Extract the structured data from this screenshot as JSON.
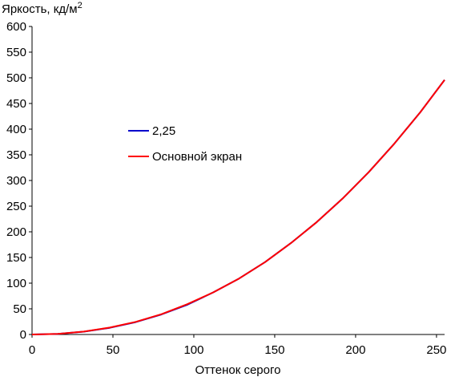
{
  "chart_data": {
    "type": "line",
    "title": "",
    "ylabel": "Яркость, кд/м",
    "ylabel_sup": "2",
    "xlabel": "Оттенок серого",
    "xlim": [
      0,
      255
    ],
    "ylim": [
      0,
      600
    ],
    "x_ticks": [
      "0",
      "50",
      "100",
      "150",
      "200",
      "250"
    ],
    "y_ticks": [
      "0",
      "50",
      "100",
      "150",
      "200",
      "250",
      "300",
      "350",
      "400",
      "450",
      "500",
      "550",
      "600"
    ],
    "grid": false,
    "legend_position": "center-left",
    "series": [
      {
        "name": "2,25",
        "color": "#0000cc",
        "x": [
          0,
          16,
          32,
          48,
          64,
          80,
          96,
          112,
          128,
          144,
          160,
          176,
          192,
          208,
          224,
          240,
          255
        ],
        "y": [
          0,
          1.2,
          5.4,
          13,
          24,
          39,
          58,
          82,
          109,
          141,
          178,
          219,
          265,
          316,
          372,
          433,
          496
        ]
      },
      {
        "name": "Основной экран",
        "color": "#ff0000",
        "x": [
          0,
          16,
          32,
          48,
          64,
          80,
          96,
          112,
          128,
          144,
          160,
          176,
          192,
          208,
          224,
          240,
          255
        ],
        "y": [
          0,
          1.3,
          5.6,
          13.5,
          24.5,
          39.5,
          59,
          82,
          109,
          141,
          178,
          219,
          265,
          316,
          372,
          433,
          496
        ]
      }
    ]
  }
}
